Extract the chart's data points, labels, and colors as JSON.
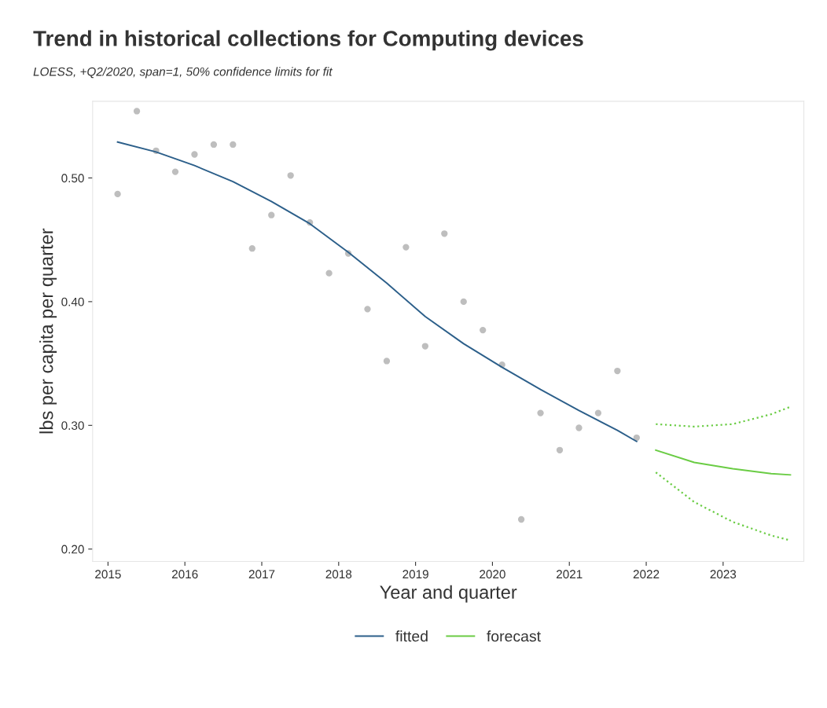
{
  "chart_data": {
    "type": "line",
    "title": "Trend in historical collections for Computing devices",
    "subtitle": "LOESS, +Q2/2020, span=1, 50% confidence limits for fit",
    "xlabel": "Year and quarter",
    "ylabel": "lbs per capita per quarter",
    "series": [
      {
        "type": "scatter",
        "marker": "circle",
        "color": "#bebebe",
        "x": [
          2015.125,
          2015.375,
          2015.625,
          2015.875,
          2016.125,
          2016.375,
          2016.625,
          2016.875,
          2017.125,
          2017.375,
          2017.625,
          2017.875,
          2018.125,
          2018.375,
          2018.625,
          2018.875,
          2019.125,
          2019.375,
          2019.625,
          2019.875,
          2020.125,
          2020.375,
          2020.625,
          2020.875,
          2021.125,
          2021.375,
          2021.625,
          2021.875
        ],
        "values": [
          0.487,
          0.554,
          0.522,
          0.505,
          0.519,
          0.527,
          0.527,
          0.443,
          0.47,
          0.502,
          0.464,
          0.423,
          0.439,
          0.394,
          0.352,
          0.444,
          0.364,
          0.455,
          0.4,
          0.377,
          0.349,
          0.224,
          0.31,
          0.28,
          0.298,
          0.31,
          0.344,
          0.29
        ]
      },
      {
        "name": "fitted",
        "color": "#2c5f8a",
        "x": [
          2015.125,
          2015.625,
          2016.125,
          2016.625,
          2017.125,
          2017.625,
          2018.125,
          2018.625,
          2019.125,
          2019.625,
          2020.125,
          2020.625,
          2021.125,
          2021.625,
          2021.875
        ],
        "values": [
          0.529,
          0.521,
          0.51,
          0.497,
          0.481,
          0.463,
          0.44,
          0.415,
          0.388,
          0.366,
          0.347,
          0.329,
          0.312,
          0.296,
          0.287
        ]
      },
      {
        "name": "forecast",
        "color": "#6acc44",
        "x": [
          2022.125,
          2022.625,
          2023.125,
          2023.625,
          2023.875
        ],
        "values": [
          0.28,
          0.27,
          0.265,
          0.261,
          0.26
        ]
      },
      {
        "color": "#6acc44",
        "line_style": "dotted",
        "x": [
          2022.125,
          2022.625,
          2023.125,
          2023.625,
          2023.875
        ],
        "values": [
          0.301,
          0.299,
          0.301,
          0.309,
          0.315
        ]
      },
      {
        "color": "#6acc44",
        "line_style": "dotted",
        "x": [
          2022.125,
          2022.625,
          2023.125,
          2023.625,
          2023.875
        ],
        "values": [
          0.262,
          0.238,
          0.222,
          0.211,
          0.207
        ]
      }
    ],
    "xlim": [
      2014.8,
      2024.05
    ],
    "xticks": [
      2015,
      2016,
      2017,
      2018,
      2019,
      2020,
      2021,
      2022,
      2023
    ],
    "ylim": [
      0.19,
      0.562
    ],
    "yticks": [
      {
        "value": 0.2,
        "label": "0.20"
      },
      {
        "value": 0.3,
        "label": "0.30"
      },
      {
        "value": 0.4,
        "label": "0.40"
      },
      {
        "value": 0.5,
        "label": "0.50"
      }
    ],
    "grid": false,
    "legend": "bottom",
    "line_style": "solid"
  }
}
